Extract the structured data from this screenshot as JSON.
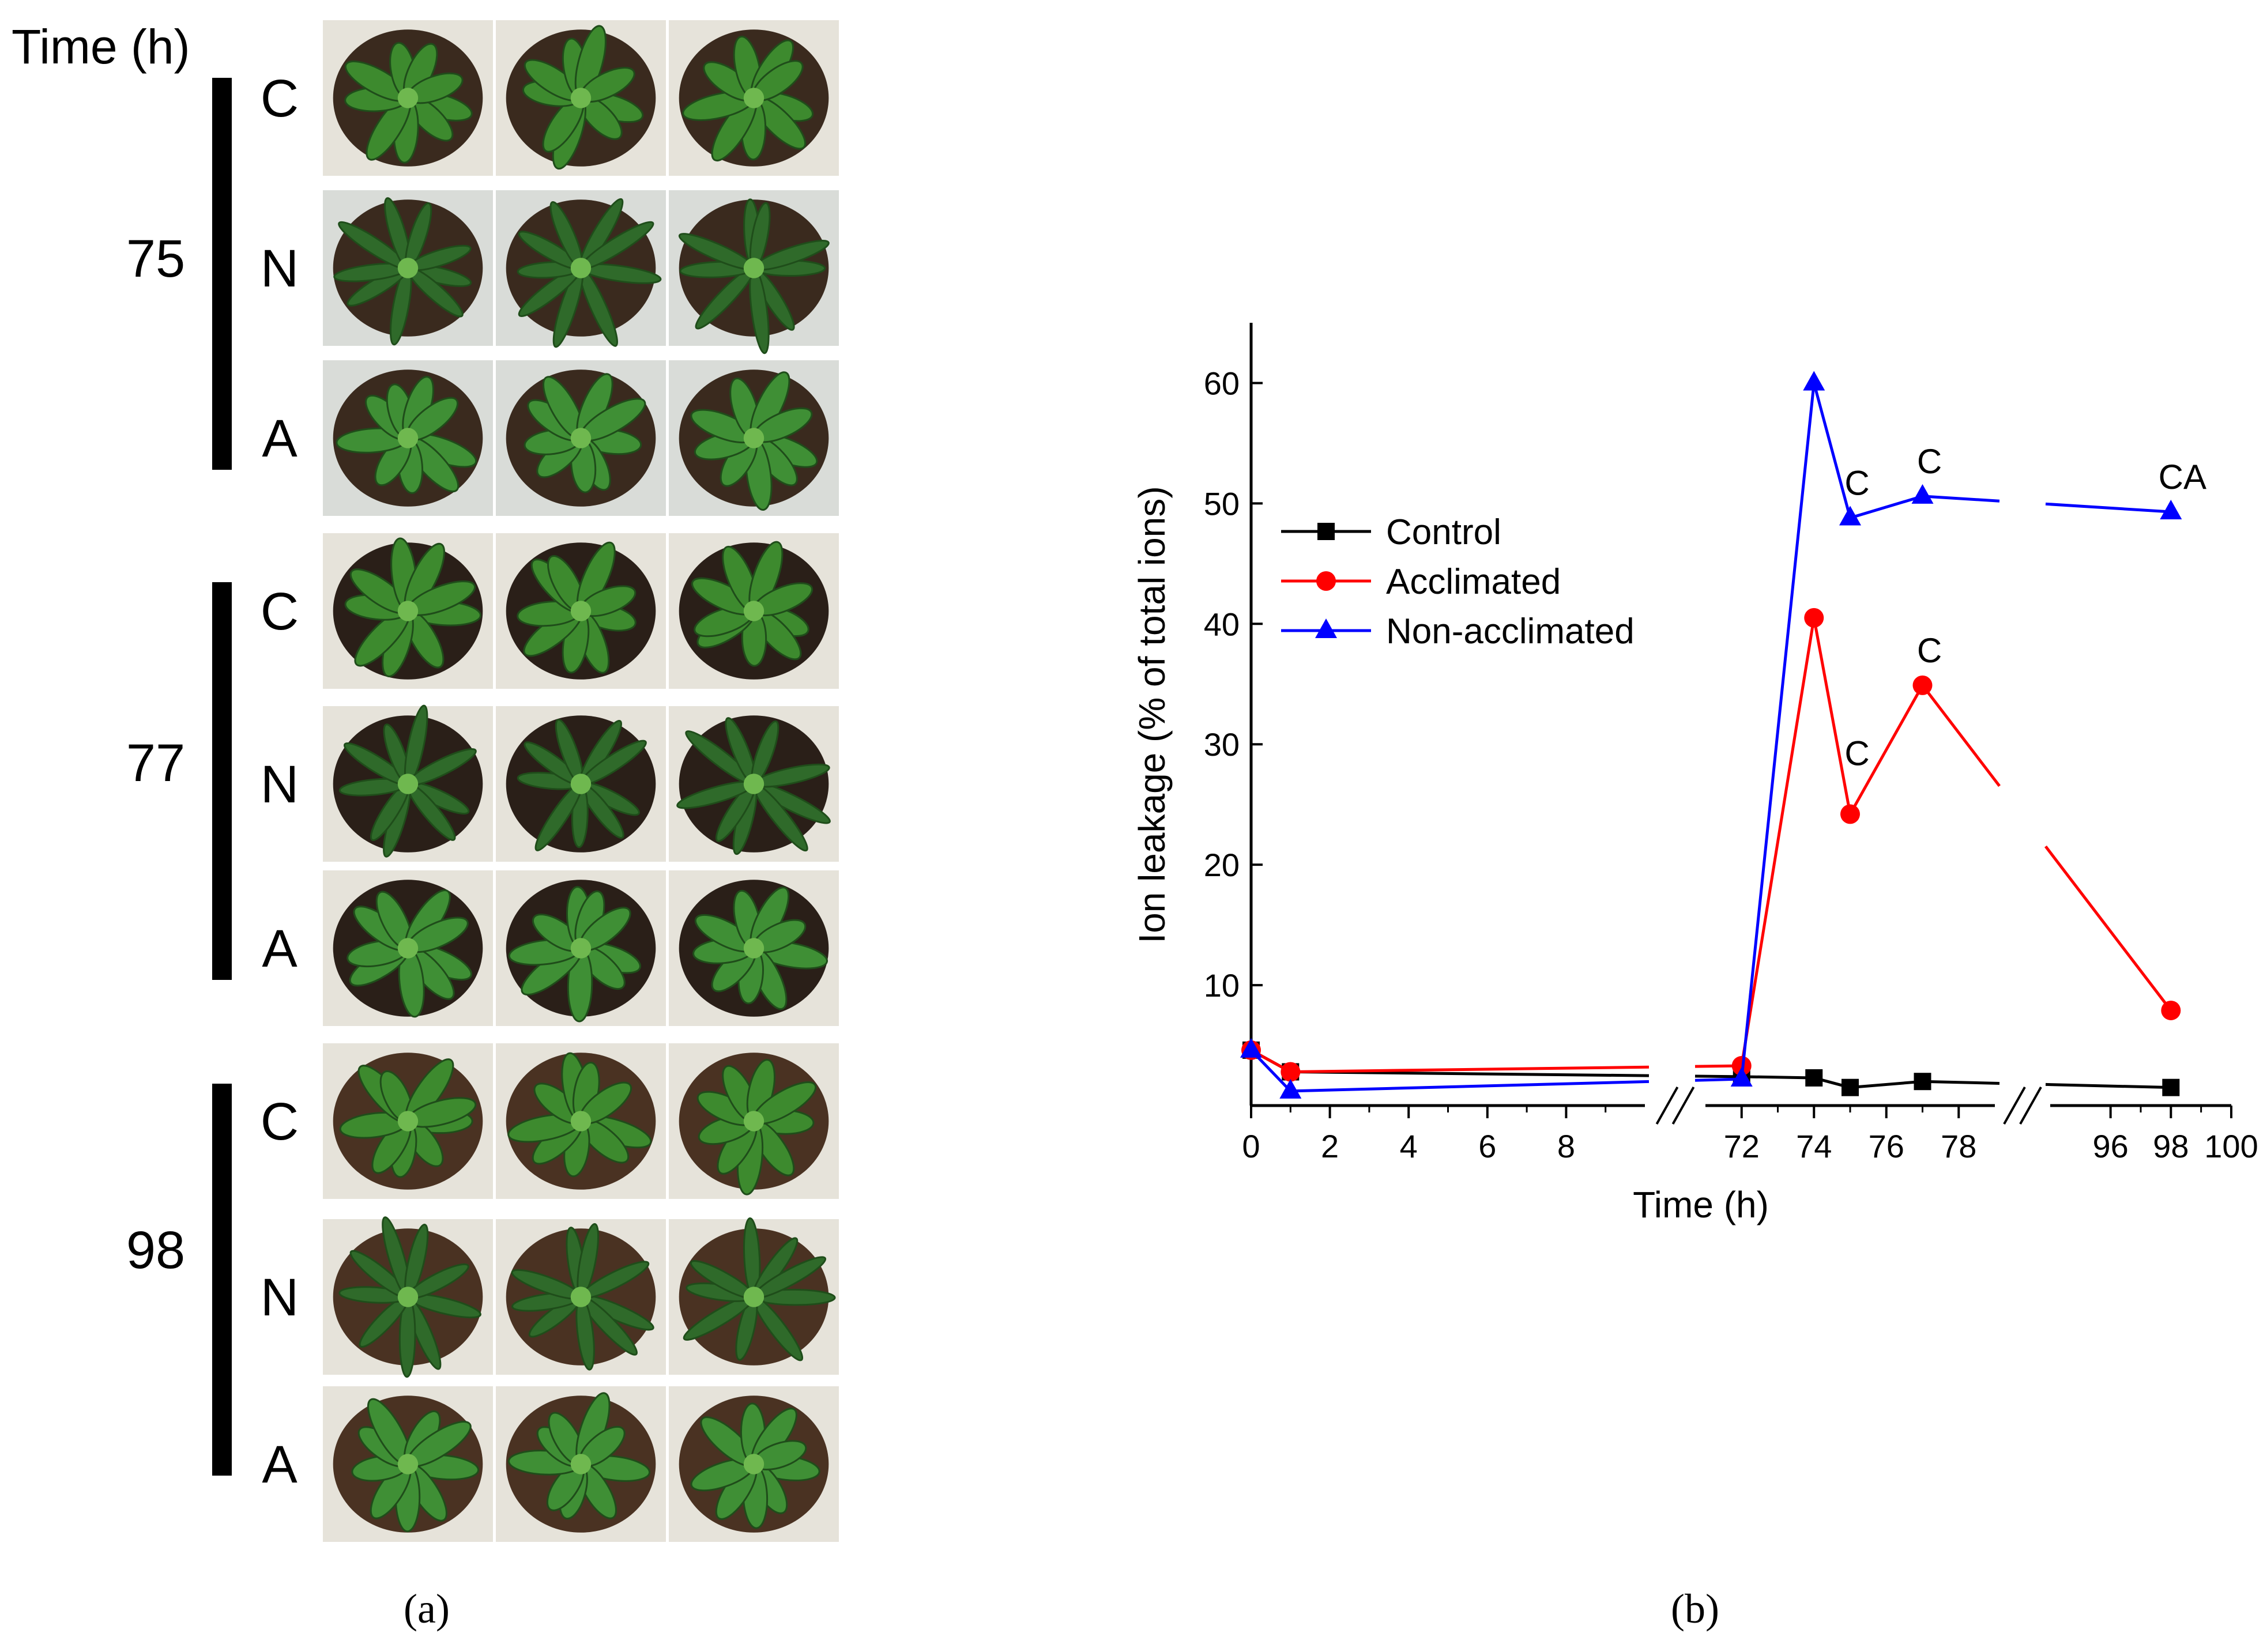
{
  "panel_a": {
    "time_header": "Time (h)",
    "groups": [
      {
        "time": "75",
        "rows": [
          "C",
          "N",
          "A"
        ]
      },
      {
        "time": "77",
        "rows": [
          "C",
          "N",
          "A"
        ]
      },
      {
        "time": "98",
        "rows": [
          "C",
          "N",
          "A"
        ]
      }
    ],
    "treatment_colors": {
      "C": "#3d8a2e",
      "N": "#2f6a2a",
      "A": "#3f8f35"
    },
    "soil_colors": {
      "75": "#3a2a1e",
      "77": "#2a1f18",
      "98": "#4a3222"
    },
    "caption": "(a)"
  },
  "panel_b": {
    "caption": "(b)"
  },
  "chart_data": {
    "type": "line",
    "title": "",
    "xlabel": "Time (h)",
    "ylabel": "Ion leakage (% of total ions)",
    "ylim": [
      0,
      65
    ],
    "yticks": [
      10,
      20,
      30,
      40,
      50,
      60
    ],
    "xticks": [
      "0",
      "2",
      "4",
      "6",
      "8",
      "72",
      "74",
      "76",
      "78",
      "96",
      "98",
      "100"
    ],
    "x_axis_segments": [
      [
        0,
        10
      ],
      [
        71,
        79
      ],
      [
        94,
        100
      ]
    ],
    "legend": "left-middle",
    "series": [
      {
        "name": "Control",
        "color": "#000000",
        "marker": "square",
        "x": [
          0,
          1,
          72,
          74,
          75,
          77,
          98
        ],
        "y": [
          4.6,
          2.8,
          2.4,
          2.3,
          1.5,
          2.0,
          1.5
        ]
      },
      {
        "name": "Acclimated",
        "color": "#ff0000",
        "marker": "circle",
        "x": [
          0,
          1,
          72,
          74,
          75,
          77,
          98
        ],
        "y": [
          4.6,
          2.8,
          3.3,
          40.5,
          24.2,
          34.9,
          7.9
        ]
      },
      {
        "name": "Non-acclimated",
        "color": "#0000ff",
        "marker": "triangle",
        "x": [
          0,
          1,
          72,
          74,
          75,
          77,
          98
        ],
        "y": [
          4.6,
          1.2,
          2.2,
          60.0,
          48.8,
          50.6,
          49.3
        ]
      }
    ],
    "annotations": [
      {
        "text": "C",
        "x": 75,
        "y": 48.8
      },
      {
        "text": "C",
        "x": 77,
        "y": 50.6
      },
      {
        "text": "CA",
        "x": 98,
        "y": 49.3
      },
      {
        "text": "C",
        "x": 75,
        "y": 24.2
      },
      {
        "text": "C",
        "x": 77,
        "y": 34.9
      }
    ]
  }
}
